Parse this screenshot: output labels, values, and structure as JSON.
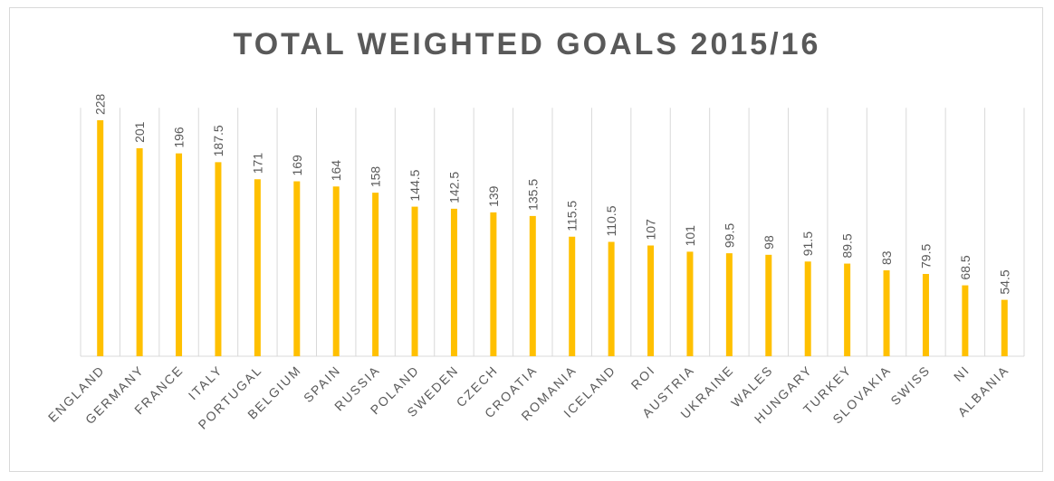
{
  "chart_data": {
    "type": "bar",
    "title": "TOTAL WEIGHTED GOALS 2015/16",
    "xlabel": "",
    "ylabel": "",
    "ylim": [
      0,
      240
    ],
    "grid": "vertical category separators",
    "legend": "none",
    "bar_color": "#ffc000",
    "categories": [
      "ENGLAND",
      "GERMANY",
      "FRANCE",
      "ITALY",
      "PORTUGAL",
      "BELGIUM",
      "SPAIN",
      "RUSSIA",
      "POLAND",
      "SWEDEN",
      "CZECH",
      "CROATIA",
      "ROMANIA",
      "ICELAND",
      "ROI",
      "AUSTRIA",
      "UKRAINE",
      "WALES",
      "HUNGARY",
      "TURKEY",
      "SLOVAKIA",
      "SWISS",
      "NI",
      "ALBANIA"
    ],
    "values": [
      228,
      201,
      196,
      187.5,
      171,
      169,
      164,
      158,
      144.5,
      142.5,
      139,
      135.5,
      115.5,
      110.5,
      107,
      101,
      99.5,
      98,
      91.5,
      89.5,
      83,
      79.5,
      68.5,
      54.5
    ],
    "data_labels": [
      "228",
      "201",
      "196",
      "187.5",
      "171",
      "169",
      "164",
      "158",
      "144.5",
      "142.5",
      "139",
      "135.5",
      "115.5",
      "110.5",
      "107",
      "101",
      "99.5",
      "98",
      "91.5",
      "89.5",
      "83",
      "79.5",
      "68.5",
      "54.5"
    ]
  }
}
